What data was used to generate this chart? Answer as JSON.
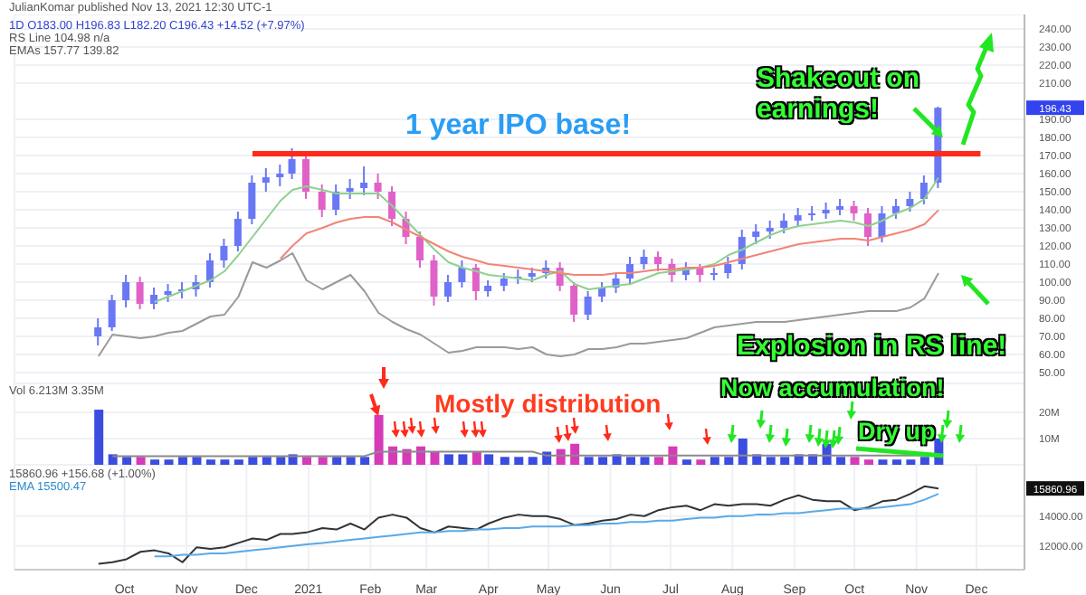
{
  "chart_data": [
    {
      "type": "candlestick",
      "grid": true,
      "tick_labels": "y",
      "x": [
        "2020-09-18",
        "2020-09-25",
        "2020-10-02",
        "2020-10-09",
        "2020-10-16",
        "2020-10-23",
        "2020-10-30",
        "2020-11-06",
        "2020-11-13",
        "2020-11-20",
        "2020-11-27",
        "2020-12-04",
        "2020-12-11",
        "2020-12-18",
        "2020-12-24",
        "2020-12-31",
        "2021-01-08",
        "2021-01-15",
        "2021-01-22",
        "2021-01-29",
        "2021-02-05",
        "2021-02-12",
        "2021-02-19",
        "2021-02-26",
        "2021-03-05",
        "2021-03-12",
        "2021-03-19",
        "2021-03-26",
        "2021-04-01",
        "2021-04-09",
        "2021-04-16",
        "2021-04-23",
        "2021-04-30",
        "2021-05-07",
        "2021-05-14",
        "2021-05-21",
        "2021-05-28",
        "2021-06-04",
        "2021-06-11",
        "2021-06-18",
        "2021-06-25",
        "2021-07-02",
        "2021-07-09",
        "2021-07-16",
        "2021-07-23",
        "2021-07-30",
        "2021-08-06",
        "2021-08-13",
        "2021-08-20",
        "2021-08-27",
        "2021-09-03",
        "2021-09-10",
        "2021-09-17",
        "2021-09-24",
        "2021-10-01",
        "2021-10-08",
        "2021-10-15",
        "2021-10-22",
        "2021-10-29",
        "2021-11-05",
        "2021-11-12"
      ],
      "ohlc": [
        [
          70,
          80,
          65,
          75
        ],
        [
          75,
          93,
          73,
          90
        ],
        [
          90,
          104,
          86,
          100
        ],
        [
          100,
          103,
          85,
          88
        ],
        [
          88,
          97,
          85,
          93
        ],
        [
          93,
          99,
          89,
          95
        ],
        [
          95,
          100,
          91,
          96
        ],
        [
          96,
          104,
          92,
          100
        ],
        [
          100,
          116,
          97,
          112
        ],
        [
          112,
          124,
          108,
          120
        ],
        [
          120,
          139,
          117,
          135
        ],
        [
          135,
          159,
          132,
          155
        ],
        [
          155,
          163,
          150,
          158
        ],
        [
          158,
          165,
          153,
          160
        ],
        [
          160,
          174,
          157,
          168
        ],
        [
          168,
          170,
          146,
          150
        ],
        [
          150,
          154,
          136,
          140
        ],
        [
          140,
          154,
          137,
          150
        ],
        [
          150,
          157,
          146,
          152
        ],
        [
          152,
          164,
          148,
          155
        ],
        [
          155,
          160,
          146,
          150
        ],
        [
          150,
          153,
          131,
          135
        ],
        [
          135,
          139,
          121,
          125
        ],
        [
          125,
          128,
          108,
          112
        ],
        [
          112,
          115,
          87,
          92
        ],
        [
          92,
          104,
          89,
          100
        ],
        [
          100,
          112,
          97,
          108
        ],
        [
          108,
          110,
          90,
          95
        ],
        [
          95,
          101,
          92,
          98
        ],
        [
          98,
          105,
          95,
          102
        ],
        [
          102,
          107,
          99,
          103
        ],
        [
          103,
          108,
          100,
          105
        ],
        [
          105,
          112,
          102,
          108
        ],
        [
          108,
          111,
          95,
          98
        ],
        [
          98,
          100,
          78,
          82
        ],
        [
          82,
          95,
          79,
          92
        ],
        [
          92,
          100,
          89,
          97
        ],
        [
          97,
          105,
          94,
          102
        ],
        [
          102,
          114,
          99,
          110
        ],
        [
          110,
          118,
          107,
          114
        ],
        [
          114,
          117,
          106,
          110
        ],
        [
          110,
          113,
          100,
          104
        ],
        [
          104,
          111,
          101,
          108
        ],
        [
          108,
          110,
          100,
          104
        ],
        [
          104,
          108,
          101,
          105
        ],
        [
          105,
          114,
          102,
          110
        ],
        [
          110,
          129,
          107,
          125
        ],
        [
          125,
          132,
          121,
          128
        ],
        [
          128,
          134,
          124,
          130
        ],
        [
          130,
          138,
          127,
          134
        ],
        [
          134,
          141,
          131,
          137
        ],
        [
          137,
          142,
          134,
          138
        ],
        [
          138,
          144,
          135,
          140
        ],
        [
          140,
          146,
          137,
          142
        ],
        [
          142,
          145,
          134,
          138
        ],
        [
          138,
          141,
          120,
          125
        ],
        [
          125,
          142,
          122,
          138
        ],
        [
          138,
          146,
          135,
          142
        ],
        [
          142,
          150,
          139,
          146
        ],
        [
          146,
          159,
          143,
          155
        ],
        [
          155,
          197,
          152,
          196.43
        ]
      ],
      "colors": [
        "#6a78f5",
        "#6a78f5",
        "#6a78f5",
        "#e062c8",
        "#6a78f5",
        "#6a78f5",
        "#6a78f5",
        "#6a78f5",
        "#6a78f5",
        "#6a78f5",
        "#6a78f5",
        "#6a78f5",
        "#6a78f5",
        "#6a78f5",
        "#6a78f5",
        "#e062c8",
        "#e062c8",
        "#6a78f5",
        "#6a78f5",
        "#6a78f5",
        "#e062c8",
        "#e062c8",
        "#e062c8",
        "#e062c8",
        "#e062c8",
        "#6a78f5",
        "#6a78f5",
        "#e062c8",
        "#6a78f5",
        "#6a78f5",
        "#6a78f5",
        "#6a78f5",
        "#6a78f5",
        "#e062c8",
        "#e062c8",
        "#6a78f5",
        "#6a78f5",
        "#6a78f5",
        "#6a78f5",
        "#6a78f5",
        "#e062c8",
        "#e062c8",
        "#6a78f5",
        "#e062c8",
        "#6a78f5",
        "#6a78f5",
        "#6a78f5",
        "#6a78f5",
        "#6a78f5",
        "#6a78f5",
        "#6a78f5",
        "#6a78f5",
        "#6a78f5",
        "#6a78f5",
        "#e062c8",
        "#e062c8",
        "#6a78f5",
        "#6a78f5",
        "#6a78f5",
        "#6a78f5",
        "#6a78f5"
      ],
      "series": [
        {
          "type": "line",
          "color": "#8fd08f",
          "values": [
            null,
            null,
            null,
            null,
            89,
            92,
            95,
            98,
            101,
            106,
            115,
            125,
            135,
            145,
            151,
            153,
            151,
            149,
            149,
            149,
            149,
            142,
            134,
            126,
            118,
            111,
            108,
            106,
            104,
            103,
            102,
            101,
            104,
            106,
            99,
            96,
            97,
            98,
            99,
            102,
            105,
            106,
            107,
            108,
            110,
            115,
            118,
            122,
            126,
            129,
            131,
            132,
            133,
            134,
            133,
            131,
            134,
            138,
            141,
            146,
            157.77
          ]
        },
        {
          "type": "line",
          "color": "#f08575",
          "values": [
            null,
            null,
            null,
            null,
            null,
            null,
            null,
            null,
            null,
            null,
            null,
            null,
            null,
            113,
            120,
            127,
            130,
            133,
            135,
            136,
            136,
            133,
            129,
            125,
            121,
            117,
            114,
            112,
            110,
            109,
            108,
            107,
            106,
            105,
            104,
            104,
            104,
            105,
            105,
            106,
            107,
            107,
            108,
            108,
            109,
            111,
            113,
            115,
            117,
            119,
            121,
            122,
            123,
            124,
            124,
            123,
            125,
            127,
            129,
            132,
            139.82
          ]
        },
        {
          "type": "line",
          "color": "#9a9a9a",
          "values": [
            59,
            71,
            70,
            69,
            70,
            72,
            73,
            77,
            81,
            82,
            92,
            111,
            108,
            112,
            116,
            101,
            96,
            100,
            104,
            95,
            83,
            78,
            74,
            71,
            66,
            61,
            62,
            64,
            64,
            64,
            63,
            64,
            60,
            59,
            60,
            63,
            63,
            64,
            66,
            66,
            67,
            68,
            69,
            72,
            75,
            76,
            77,
            78,
            78,
            78,
            79,
            80,
            81,
            82,
            83,
            84,
            84,
            84,
            86,
            91,
            105
          ]
        },
        {
          "type": "line",
          "color": "#ff2a1a",
          "x": [
            "2020-12-04",
            "2021-12-03"
          ],
          "values": [
            171,
            171
          ]
        }
      ],
      "xlim": [
        "2020-08-07",
        "2021-12-25"
      ],
      "xticks": [
        {
          "value": "2020-10-01",
          "label": null
        },
        {
          "value": "2020-11-01",
          "label": null
        },
        {
          "value": "2020-12-01",
          "label": null
        },
        {
          "value": "2021-01-01",
          "label": null
        },
        {
          "value": "2021-02-01",
          "label": null
        },
        {
          "value": "2021-03-01",
          "label": null
        },
        {
          "value": "2021-04-01",
          "label": null
        },
        {
          "value": "2021-05-01",
          "label": null
        },
        {
          "value": "2021-06-01",
          "label": null
        },
        {
          "value": "2021-07-01",
          "label": null
        },
        {
          "value": "2021-08-01",
          "label": null
        },
        {
          "value": "2021-09-01",
          "label": null
        },
        {
          "value": "2021-10-01",
          "label": null
        },
        {
          "value": "2021-11-01",
          "label": null
        },
        {
          "value": "2021-12-01",
          "label": null
        }
      ],
      "ylim": [
        44,
        248
      ],
      "yticks": [
        {
          "value": 50,
          "label": "50.00"
        },
        {
          "value": 60,
          "label": "60.00"
        },
        {
          "value": 70,
          "label": "70.00"
        },
        {
          "value": 80,
          "label": "80.00"
        },
        {
          "value": 90,
          "label": "90.00"
        },
        {
          "value": 100,
          "label": "100.00"
        },
        {
          "value": 110,
          "label": "110.00"
        },
        {
          "value": 120,
          "label": "120.00"
        },
        {
          "value": 130,
          "label": "130.00"
        },
        {
          "value": 140,
          "label": "140.00"
        },
        {
          "value": 150,
          "label": "150.00"
        },
        {
          "value": 160,
          "label": "160.00"
        },
        {
          "value": 170,
          "label": "170.00"
        },
        {
          "value": 180,
          "label": "180.00"
        },
        {
          "value": 190,
          "label": "190.00"
        },
        {
          "value": 210,
          "label": "210.00"
        },
        {
          "value": 220,
          "label": "220.00"
        },
        {
          "value": 230,
          "label": "230.00"
        },
        {
          "value": 240,
          "label": "240.00"
        }
      ],
      "annotations": [
        "JulianKomar published Nov 13, 2021 12:30 UTC-1",
        "1D O183.00 H196.83 L182.20 C196.43 +14.52 (+7.97%)",
        "RS Line 104.98 n/a",
        "EMAs 157.77 139.82",
        "1 year IPO base!",
        "Shakeout on earnings!",
        "Explosion in RS line!",
        "196.43"
      ]
    },
    {
      "type": "bar",
      "grid": true,
      "tick_labels": "y",
      "x": [
        "2020-09-18",
        "2020-09-25",
        "2020-10-02",
        "2020-10-09",
        "2020-10-16",
        "2020-10-23",
        "2020-10-30",
        "2020-11-06",
        "2020-11-13",
        "2020-11-20",
        "2020-11-27",
        "2020-12-04",
        "2020-12-11",
        "2020-12-18",
        "2020-12-24",
        "2020-12-31",
        "2021-01-08",
        "2021-01-15",
        "2021-01-22",
        "2021-01-29",
        "2021-02-05",
        "2021-02-12",
        "2021-02-19",
        "2021-02-26",
        "2021-03-05",
        "2021-03-12",
        "2021-03-19",
        "2021-03-26",
        "2021-04-01",
        "2021-04-09",
        "2021-04-16",
        "2021-04-23",
        "2021-04-30",
        "2021-05-07",
        "2021-05-14",
        "2021-05-21",
        "2021-05-28",
        "2021-06-04",
        "2021-06-11",
        "2021-06-18",
        "2021-06-25",
        "2021-07-02",
        "2021-07-09",
        "2021-07-16",
        "2021-07-23",
        "2021-07-30",
        "2021-08-06",
        "2021-08-13",
        "2021-08-20",
        "2021-08-27",
        "2021-09-03",
        "2021-09-10",
        "2021-09-17",
        "2021-09-24",
        "2021-10-01",
        "2021-10-08",
        "2021-10-15",
        "2021-10-22",
        "2021-10-29",
        "2021-11-05",
        "2021-11-12"
      ],
      "series": [
        {
          "type": "bar",
          "values": [
            21,
            4,
            3,
            3,
            2,
            2,
            3,
            3,
            2,
            2,
            2,
            3,
            3,
            3,
            4,
            3,
            3,
            3,
            3,
            3,
            19,
            7,
            6,
            7,
            5,
            4,
            4,
            5,
            4,
            3,
            3,
            3,
            5,
            6,
            8,
            3,
            3,
            4,
            3,
            3,
            3,
            7,
            2,
            2,
            3,
            3,
            10,
            4,
            3,
            3,
            4,
            4,
            8,
            3,
            3,
            2,
            2,
            2,
            2,
            3,
            10
          ],
          "colors": [
            "#3b4de0",
            "#3b4de0",
            "#3b4de0",
            "#d63ab8",
            "#3b4de0",
            "#3b4de0",
            "#3b4de0",
            "#3b4de0",
            "#3b4de0",
            "#3b4de0",
            "#3b4de0",
            "#3b4de0",
            "#3b4de0",
            "#3b4de0",
            "#3b4de0",
            "#d63ab8",
            "#d63ab8",
            "#3b4de0",
            "#3b4de0",
            "#3b4de0",
            "#d63ab8",
            "#d63ab8",
            "#d63ab8",
            "#d63ab8",
            "#d63ab8",
            "#3b4de0",
            "#3b4de0",
            "#d63ab8",
            "#3b4de0",
            "#3b4de0",
            "#3b4de0",
            "#3b4de0",
            "#3b4de0",
            "#d63ab8",
            "#d63ab8",
            "#3b4de0",
            "#3b4de0",
            "#3b4de0",
            "#3b4de0",
            "#3b4de0",
            "#d63ab8",
            "#d63ab8",
            "#3b4de0",
            "#d63ab8",
            "#3b4de0",
            "#3b4de0",
            "#3b4de0",
            "#3b4de0",
            "#3b4de0",
            "#3b4de0",
            "#3b4de0",
            "#3b4de0",
            "#3b4de0",
            "#3b4de0",
            "#d63ab8",
            "#d63ab8",
            "#3b4de0",
            "#3b4de0",
            "#3b4de0",
            "#3b4de0",
            "#3b4de0"
          ]
        },
        {
          "type": "line",
          "color": "#8a8a8a",
          "values": [
            null,
            3.3,
            3.3,
            3.3,
            3.3,
            3.3,
            3.3,
            3.3,
            3.3,
            3.3,
            3.3,
            3.3,
            3.3,
            3.3,
            3.3,
            3.3,
            3.3,
            3.3,
            3.3,
            3.3,
            5,
            5,
            5,
            5,
            5,
            5,
            5,
            5,
            5,
            5,
            5,
            5,
            3.5,
            3.5,
            3.5,
            3.5,
            3.5,
            3.5,
            3.5,
            3.5,
            3.5,
            3.5,
            3.5,
            3.5,
            3.5,
            3.5,
            3.5,
            3.5,
            3.5,
            3.5,
            3.5,
            3.5,
            3.5,
            3.5,
            3.5,
            3.5,
            3.5,
            3.5,
            3.5,
            3.5,
            3.35
          ]
        }
      ],
      "xlim": [
        "2020-08-07",
        "2021-12-25"
      ],
      "xticks": [
        {
          "value": "2020-10-01",
          "label": null
        },
        {
          "value": "2020-11-01",
          "label": null
        },
        {
          "value": "2020-12-01",
          "label": null
        },
        {
          "value": "2021-01-01",
          "label": null
        },
        {
          "value": "2021-02-01",
          "label": null
        },
        {
          "value": "2021-03-01",
          "label": null
        },
        {
          "value": "2021-04-01",
          "label": null
        },
        {
          "value": "2021-05-01",
          "label": null
        },
        {
          "value": "2021-06-01",
          "label": null
        },
        {
          "value": "2021-07-01",
          "label": null
        },
        {
          "value": "2021-08-01",
          "label": null
        },
        {
          "value": "2021-09-01",
          "label": null
        },
        {
          "value": "2021-10-01",
          "label": null
        },
        {
          "value": "2021-11-01",
          "label": null
        },
        {
          "value": "2021-12-01",
          "label": null
        }
      ],
      "ylim": [
        0,
        31
      ],
      "yticks": [
        {
          "value": 10,
          "label": "10M"
        },
        {
          "value": 20,
          "label": "20M"
        }
      ],
      "annotations": [
        "Vol 6.213M 3.35M",
        "Mostly distribution",
        "Now accumulation!",
        "Dry up"
      ]
    },
    {
      "type": "line",
      "grid": true,
      "x": [
        "2020-09-18",
        "2020-09-25",
        "2020-10-02",
        "2020-10-09",
        "2020-10-16",
        "2020-10-23",
        "2020-10-30",
        "2020-11-06",
        "2020-11-13",
        "2020-11-20",
        "2020-11-27",
        "2020-12-04",
        "2020-12-11",
        "2020-12-18",
        "2020-12-24",
        "2020-12-31",
        "2021-01-08",
        "2021-01-15",
        "2021-01-22",
        "2021-01-29",
        "2021-02-05",
        "2021-02-12",
        "2021-02-19",
        "2021-02-26",
        "2021-03-05",
        "2021-03-12",
        "2021-03-19",
        "2021-03-26",
        "2021-04-01",
        "2021-04-09",
        "2021-04-16",
        "2021-04-23",
        "2021-04-30",
        "2021-05-07",
        "2021-05-14",
        "2021-05-21",
        "2021-05-28",
        "2021-06-04",
        "2021-06-11",
        "2021-06-18",
        "2021-06-25",
        "2021-07-02",
        "2021-07-09",
        "2021-07-16",
        "2021-07-23",
        "2021-07-30",
        "2021-08-06",
        "2021-08-13",
        "2021-08-20",
        "2021-08-27",
        "2021-09-03",
        "2021-09-10",
        "2021-09-17",
        "2021-09-24",
        "2021-10-01",
        "2021-10-08",
        "2021-10-15",
        "2021-10-22",
        "2021-10-29",
        "2021-11-05",
        "2021-11-12"
      ],
      "series": [
        {
          "color": "#333333",
          "values": [
            10800,
            10900,
            11100,
            11600,
            11700,
            11500,
            10900,
            11900,
            11800,
            11900,
            12200,
            12500,
            12400,
            12800,
            12800,
            12900,
            13200,
            13100,
            13500,
            13100,
            13900,
            14100,
            13900,
            13200,
            12900,
            13300,
            13200,
            13100,
            13500,
            13900,
            14100,
            14000,
            14000,
            13800,
            13400,
            13500,
            13700,
            13800,
            14100,
            14000,
            14400,
            14600,
            14700,
            14400,
            14800,
            14700,
            14800,
            14800,
            14700,
            15100,
            15400,
            15100,
            15000,
            15000,
            14400,
            14600,
            15000,
            15100,
            15500,
            16000,
            15860.96
          ]
        },
        {
          "color": "#5aa9e6",
          "values": [
            null,
            null,
            null,
            null,
            11300,
            11300,
            11400,
            11400,
            11500,
            11500,
            11600,
            11700,
            11800,
            11900,
            12000,
            12100,
            12200,
            12300,
            12400,
            12500,
            12600,
            12700,
            12800,
            12900,
            12900,
            13000,
            13000,
            13100,
            13100,
            13200,
            13200,
            13300,
            13300,
            13300,
            13400,
            13400,
            13500,
            13500,
            13600,
            13600,
            13700,
            13700,
            13800,
            13900,
            13900,
            14000,
            14000,
            14100,
            14100,
            14200,
            14200,
            14300,
            14400,
            14500,
            14500,
            14500,
            14600,
            14700,
            14800,
            15100,
            15500.47
          ]
        }
      ],
      "xlim": [
        "2020-08-07",
        "2021-12-25"
      ],
      "xticks": [
        {
          "value": "2020-10-01",
          "label": "Oct"
        },
        {
          "value": "2020-11-01",
          "label": "Nov"
        },
        {
          "value": "2020-12-01",
          "label": "Dec"
        },
        {
          "value": "2021-01-01",
          "label": "2021"
        },
        {
          "value": "2021-02-01",
          "label": "Feb"
        },
        {
          "value": "2021-03-01",
          "label": "Mar"
        },
        {
          "value": "2021-04-01",
          "label": "Apr"
        },
        {
          "value": "2021-05-01",
          "label": "May"
        },
        {
          "value": "2021-06-01",
          "label": "Jun"
        },
        {
          "value": "2021-07-01",
          "label": "Jul"
        },
        {
          "value": "2021-08-01",
          "label": "Aug"
        },
        {
          "value": "2021-09-01",
          "label": "Sep"
        },
        {
          "value": "2021-10-01",
          "label": "Oct"
        },
        {
          "value": "2021-11-01",
          "label": "Nov"
        },
        {
          "value": "2021-12-01",
          "label": "Dec"
        }
      ],
      "ylim": [
        10400,
        17450
      ],
      "yticks": [
        {
          "value": 12000,
          "label": "12000.00"
        },
        {
          "value": 14000,
          "label": "14000.00"
        }
      ],
      "annotations": [
        "15860.96 +156.68 (+1.00%)",
        "EMA 15500.47",
        "15860.96"
      ]
    }
  ]
}
